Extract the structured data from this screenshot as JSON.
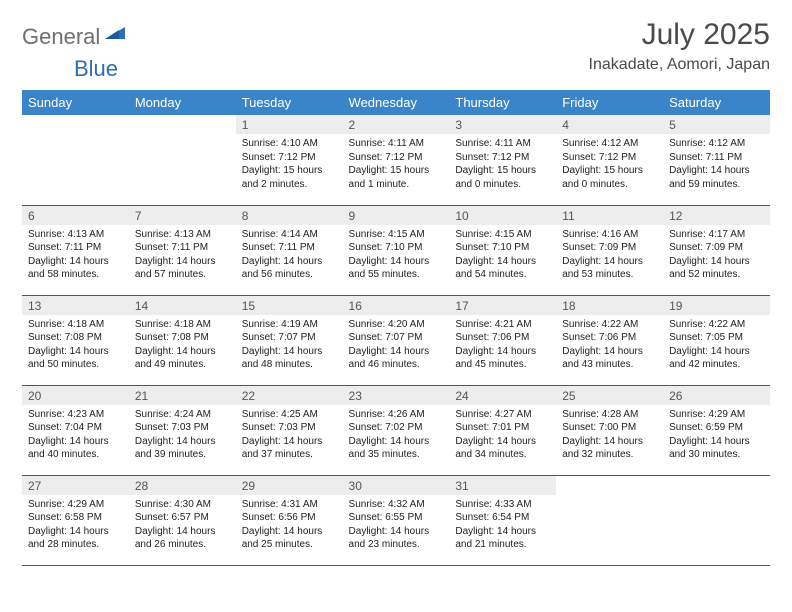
{
  "logo": {
    "textGray": "General",
    "textBlue": "Blue"
  },
  "title": {
    "month": "July 2025",
    "location": "Inakadate, Aomori, Japan"
  },
  "weekdays": [
    "Sunday",
    "Monday",
    "Tuesday",
    "Wednesday",
    "Thursday",
    "Friday",
    "Saturday"
  ],
  "style": {
    "header_bg": "#3a85c9",
    "header_text": "#ffffff",
    "daynum_bg": "#ededed",
    "border_color": "#2f5f8f",
    "body_font_size": 10,
    "header_font_size": 13,
    "title_font_size": 30,
    "location_font_size": 16
  },
  "weeks": [
    [
      null,
      null,
      {
        "n": "1",
        "sr": "Sunrise: 4:10 AM",
        "ss": "Sunset: 7:12 PM",
        "dl1": "Daylight: 15 hours",
        "dl2": "and 2 minutes."
      },
      {
        "n": "2",
        "sr": "Sunrise: 4:11 AM",
        "ss": "Sunset: 7:12 PM",
        "dl1": "Daylight: 15 hours",
        "dl2": "and 1 minute."
      },
      {
        "n": "3",
        "sr": "Sunrise: 4:11 AM",
        "ss": "Sunset: 7:12 PM",
        "dl1": "Daylight: 15 hours",
        "dl2": "and 0 minutes."
      },
      {
        "n": "4",
        "sr": "Sunrise: 4:12 AM",
        "ss": "Sunset: 7:12 PM",
        "dl1": "Daylight: 15 hours",
        "dl2": "and 0 minutes."
      },
      {
        "n": "5",
        "sr": "Sunrise: 4:12 AM",
        "ss": "Sunset: 7:11 PM",
        "dl1": "Daylight: 14 hours",
        "dl2": "and 59 minutes."
      }
    ],
    [
      {
        "n": "6",
        "sr": "Sunrise: 4:13 AM",
        "ss": "Sunset: 7:11 PM",
        "dl1": "Daylight: 14 hours",
        "dl2": "and 58 minutes."
      },
      {
        "n": "7",
        "sr": "Sunrise: 4:13 AM",
        "ss": "Sunset: 7:11 PM",
        "dl1": "Daylight: 14 hours",
        "dl2": "and 57 minutes."
      },
      {
        "n": "8",
        "sr": "Sunrise: 4:14 AM",
        "ss": "Sunset: 7:11 PM",
        "dl1": "Daylight: 14 hours",
        "dl2": "and 56 minutes."
      },
      {
        "n": "9",
        "sr": "Sunrise: 4:15 AM",
        "ss": "Sunset: 7:10 PM",
        "dl1": "Daylight: 14 hours",
        "dl2": "and 55 minutes."
      },
      {
        "n": "10",
        "sr": "Sunrise: 4:15 AM",
        "ss": "Sunset: 7:10 PM",
        "dl1": "Daylight: 14 hours",
        "dl2": "and 54 minutes."
      },
      {
        "n": "11",
        "sr": "Sunrise: 4:16 AM",
        "ss": "Sunset: 7:09 PM",
        "dl1": "Daylight: 14 hours",
        "dl2": "and 53 minutes."
      },
      {
        "n": "12",
        "sr": "Sunrise: 4:17 AM",
        "ss": "Sunset: 7:09 PM",
        "dl1": "Daylight: 14 hours",
        "dl2": "and 52 minutes."
      }
    ],
    [
      {
        "n": "13",
        "sr": "Sunrise: 4:18 AM",
        "ss": "Sunset: 7:08 PM",
        "dl1": "Daylight: 14 hours",
        "dl2": "and 50 minutes."
      },
      {
        "n": "14",
        "sr": "Sunrise: 4:18 AM",
        "ss": "Sunset: 7:08 PM",
        "dl1": "Daylight: 14 hours",
        "dl2": "and 49 minutes."
      },
      {
        "n": "15",
        "sr": "Sunrise: 4:19 AM",
        "ss": "Sunset: 7:07 PM",
        "dl1": "Daylight: 14 hours",
        "dl2": "and 48 minutes."
      },
      {
        "n": "16",
        "sr": "Sunrise: 4:20 AM",
        "ss": "Sunset: 7:07 PM",
        "dl1": "Daylight: 14 hours",
        "dl2": "and 46 minutes."
      },
      {
        "n": "17",
        "sr": "Sunrise: 4:21 AM",
        "ss": "Sunset: 7:06 PM",
        "dl1": "Daylight: 14 hours",
        "dl2": "and 45 minutes."
      },
      {
        "n": "18",
        "sr": "Sunrise: 4:22 AM",
        "ss": "Sunset: 7:06 PM",
        "dl1": "Daylight: 14 hours",
        "dl2": "and 43 minutes."
      },
      {
        "n": "19",
        "sr": "Sunrise: 4:22 AM",
        "ss": "Sunset: 7:05 PM",
        "dl1": "Daylight: 14 hours",
        "dl2": "and 42 minutes."
      }
    ],
    [
      {
        "n": "20",
        "sr": "Sunrise: 4:23 AM",
        "ss": "Sunset: 7:04 PM",
        "dl1": "Daylight: 14 hours",
        "dl2": "and 40 minutes."
      },
      {
        "n": "21",
        "sr": "Sunrise: 4:24 AM",
        "ss": "Sunset: 7:03 PM",
        "dl1": "Daylight: 14 hours",
        "dl2": "and 39 minutes."
      },
      {
        "n": "22",
        "sr": "Sunrise: 4:25 AM",
        "ss": "Sunset: 7:03 PM",
        "dl1": "Daylight: 14 hours",
        "dl2": "and 37 minutes."
      },
      {
        "n": "23",
        "sr": "Sunrise: 4:26 AM",
        "ss": "Sunset: 7:02 PM",
        "dl1": "Daylight: 14 hours",
        "dl2": "and 35 minutes."
      },
      {
        "n": "24",
        "sr": "Sunrise: 4:27 AM",
        "ss": "Sunset: 7:01 PM",
        "dl1": "Daylight: 14 hours",
        "dl2": "and 34 minutes."
      },
      {
        "n": "25",
        "sr": "Sunrise: 4:28 AM",
        "ss": "Sunset: 7:00 PM",
        "dl1": "Daylight: 14 hours",
        "dl2": "and 32 minutes."
      },
      {
        "n": "26",
        "sr": "Sunrise: 4:29 AM",
        "ss": "Sunset: 6:59 PM",
        "dl1": "Daylight: 14 hours",
        "dl2": "and 30 minutes."
      }
    ],
    [
      {
        "n": "27",
        "sr": "Sunrise: 4:29 AM",
        "ss": "Sunset: 6:58 PM",
        "dl1": "Daylight: 14 hours",
        "dl2": "and 28 minutes."
      },
      {
        "n": "28",
        "sr": "Sunrise: 4:30 AM",
        "ss": "Sunset: 6:57 PM",
        "dl1": "Daylight: 14 hours",
        "dl2": "and 26 minutes."
      },
      {
        "n": "29",
        "sr": "Sunrise: 4:31 AM",
        "ss": "Sunset: 6:56 PM",
        "dl1": "Daylight: 14 hours",
        "dl2": "and 25 minutes."
      },
      {
        "n": "30",
        "sr": "Sunrise: 4:32 AM",
        "ss": "Sunset: 6:55 PM",
        "dl1": "Daylight: 14 hours",
        "dl2": "and 23 minutes."
      },
      {
        "n": "31",
        "sr": "Sunrise: 4:33 AM",
        "ss": "Sunset: 6:54 PM",
        "dl1": "Daylight: 14 hours",
        "dl2": "and 21 minutes."
      },
      null,
      null
    ]
  ]
}
